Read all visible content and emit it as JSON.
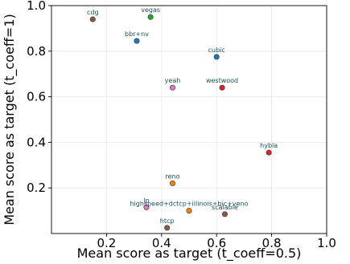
{
  "chart_data": {
    "type": "scatter",
    "xlabel": "Mean score as target (t_coeff=0.5)",
    "ylabel": "Mean score as target (t_coeff=1)",
    "xlim": [
      0.0,
      1.0
    ],
    "ylim": [
      0.0,
      1.0
    ],
    "xticks": [
      "0.2",
      "0.4",
      "0.6",
      "0.8",
      "1.0"
    ],
    "yticks": [
      "0.2",
      "0.4",
      "0.6",
      "0.8",
      "1.0"
    ],
    "grid": true,
    "points": [
      {
        "label": "cdg",
        "x": 0.15,
        "y": 0.94,
        "color": "#8c564b"
      },
      {
        "label": "vegas",
        "x": 0.36,
        "y": 0.95,
        "color": "#2ca02c"
      },
      {
        "label": "bbr+nv",
        "x": 0.31,
        "y": 0.845,
        "color": "#1f77b4"
      },
      {
        "label": "cubic",
        "x": 0.6,
        "y": 0.775,
        "color": "#1f77b4"
      },
      {
        "label": "yeah",
        "x": 0.44,
        "y": 0.64,
        "color": "#e377c2"
      },
      {
        "label": "westwood",
        "x": 0.62,
        "y": 0.64,
        "color": "#d62728"
      },
      {
        "label": "hybla",
        "x": 0.79,
        "y": 0.355,
        "color": "#d62728"
      },
      {
        "label": "reno",
        "x": 0.44,
        "y": 0.22,
        "color": "#ff7f0e"
      },
      {
        "label": "lp",
        "x": 0.345,
        "y": 0.115,
        "color": "#e377c2"
      },
      {
        "label": "highspeed+dctcp+illinois+bic+veno",
        "x": 0.5,
        "y": 0.1,
        "color": "#ff7f0e"
      },
      {
        "label": "scalable",
        "x": 0.63,
        "y": 0.085,
        "color": "#8c564b"
      },
      {
        "label": "htcp",
        "x": 0.42,
        "y": 0.025,
        "color": "#8c564b"
      }
    ]
  }
}
